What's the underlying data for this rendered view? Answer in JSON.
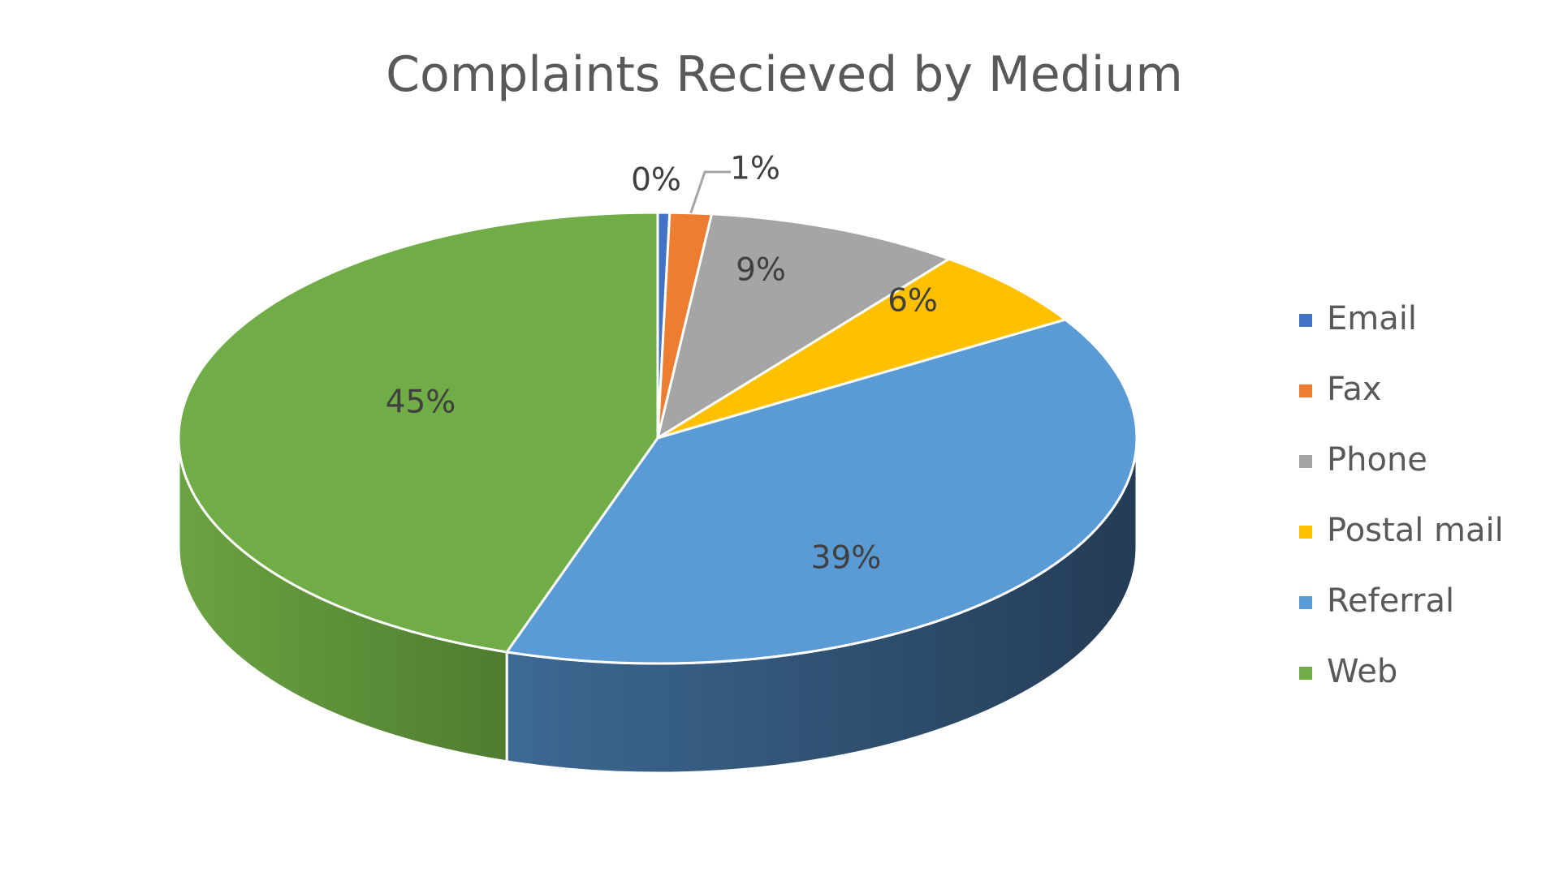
{
  "chart_data": {
    "type": "pie",
    "title": "Complaints Recieved by Medium",
    "categories": [
      "Email",
      "Fax",
      "Phone",
      "Postal mail",
      "Referral",
      "Web"
    ],
    "values": [
      0.4,
      1.4,
      8.6,
      5.8,
      38.9,
      44.9
    ],
    "data_labels": [
      "0%",
      "1%",
      "9%",
      "6%",
      "39%",
      "45%"
    ],
    "colors": [
      "#4472C4",
      "#ED7D31",
      "#A5A5A5",
      "#FFC000",
      "#5B9BD5",
      "#70AD47"
    ],
    "legend_position": "right",
    "style": "3d-pie"
  }
}
